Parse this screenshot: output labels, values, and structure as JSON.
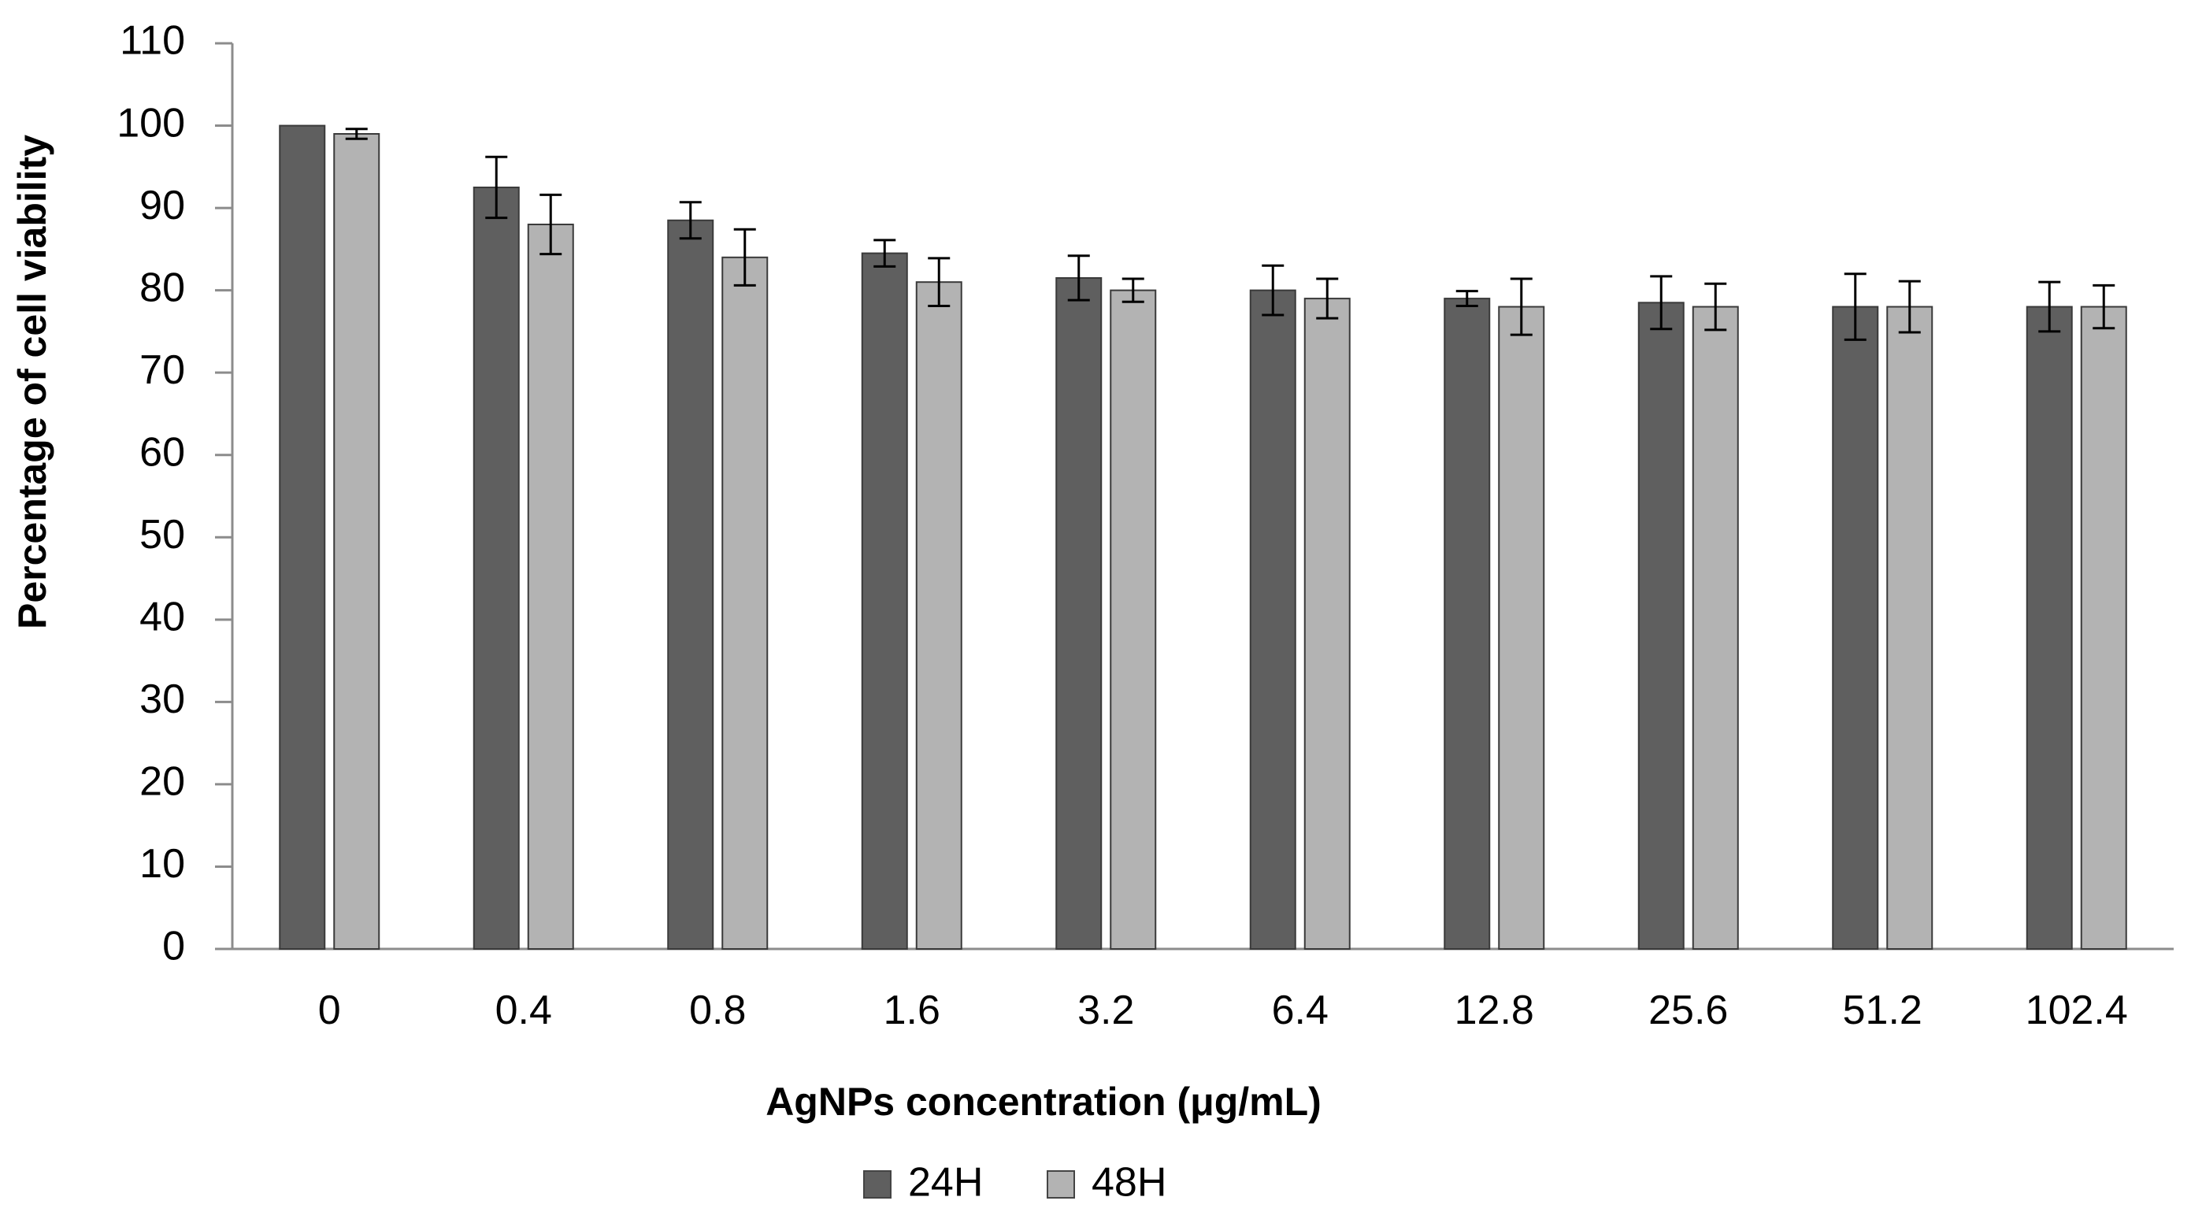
{
  "chart_data": {
    "type": "bar",
    "title": "",
    "xlabel": "AgNPs concentration (μg/mL)",
    "ylabel": "Percentage of cell viability",
    "ylim": [
      0,
      110
    ],
    "yticks": [
      0,
      10,
      20,
      30,
      40,
      50,
      60,
      70,
      80,
      90,
      100,
      110
    ],
    "categories": [
      "0",
      "0.4",
      "0.8",
      "1.6",
      "3.2",
      "6.4",
      "12.8",
      "25.6",
      "51.2",
      "102.4"
    ],
    "series": [
      {
        "name": "24H",
        "color": "#5f5f5f",
        "values": [
          100,
          92.5,
          88.5,
          84.5,
          81.5,
          80,
          79,
          78.5,
          78,
          78
        ],
        "errors": [
          0,
          3.7,
          2.2,
          1.6,
          2.7,
          3,
          0.9,
          3.2,
          4,
          3
        ]
      },
      {
        "name": "48H",
        "color": "#b3b3b3",
        "values": [
          99,
          88,
          84,
          81,
          80,
          79,
          78,
          78,
          78,
          78
        ],
        "errors": [
          0.6,
          3.6,
          3.4,
          2.9,
          1.4,
          2.4,
          3.4,
          2.8,
          3.1,
          2.6
        ]
      }
    ],
    "legend_position": "bottom-center",
    "grid": false
  }
}
